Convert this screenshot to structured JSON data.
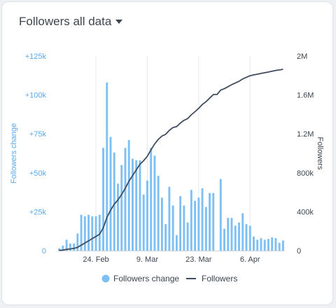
{
  "header": {
    "title": "Followers all data"
  },
  "colors": {
    "bars": "#7ec0f4",
    "line": "#3f4c5f",
    "left_axis": "#5ba8ea",
    "grid": "#e6e9ed"
  },
  "icons": {
    "dropdown": "caret-down-icon"
  },
  "chart_data": {
    "type": "bar+line",
    "x_ticks": [
      {
        "label": "24. Feb",
        "day": 10
      },
      {
        "label": "9. Mar",
        "day": 24
      },
      {
        "label": "23. Mar",
        "day": 38
      },
      {
        "label": "6. Apr",
        "day": 52
      }
    ],
    "y_left": {
      "label": "Followers change",
      "range": [
        0,
        125000
      ],
      "ticks": [
        {
          "value": 0,
          "label": "0"
        },
        {
          "value": 25000,
          "label": "+25k"
        },
        {
          "value": 50000,
          "label": "+50k"
        },
        {
          "value": 75000,
          "label": "+75k"
        },
        {
          "value": 100000,
          "label": "+100k"
        },
        {
          "value": 125000,
          "label": "+125k"
        }
      ]
    },
    "y_right": {
      "label": "Followers",
      "range": [
        0,
        2000000
      ],
      "ticks": [
        {
          "value": 0,
          "label": "0"
        },
        {
          "value": 400000,
          "label": "400k"
        },
        {
          "value": 800000,
          "label": "800k"
        },
        {
          "value": 1200000,
          "label": "1.2M"
        },
        {
          "value": 1600000,
          "label": "1.6M"
        },
        {
          "value": 2000000,
          "label": "2M"
        }
      ]
    },
    "series": [
      {
        "name": "Followers change",
        "kind": "bar",
        "values": [
          1500,
          3200,
          7000,
          4500,
          4500,
          11000,
          23000,
          22000,
          23000,
          22000,
          22000,
          23000,
          66000,
          108000,
          73000,
          63000,
          43000,
          55000,
          66000,
          71000,
          59000,
          58000,
          58000,
          36000,
          45000,
          66000,
          61000,
          48000,
          34000,
          17000,
          41000,
          29000,
          10000,
          35000,
          29000,
          18000,
          39000,
          32000,
          34000,
          40000,
          28000,
          37000,
          37000,
          0,
          46000,
          14000,
          21000,
          21000,
          16000,
          18000,
          24000,
          17000,
          16000,
          9000,
          7000,
          8000,
          7000,
          7500,
          8500,
          8000,
          5000,
          6500
        ]
      },
      {
        "name": "Followers",
        "kind": "line",
        "values": [
          2000,
          5000,
          12000,
          17000,
          22000,
          33000,
          56000,
          78000,
          101000,
          123000,
          145000,
          168000,
          234000,
          342000,
          415000,
          478000,
          521000,
          576000,
          642000,
          713000,
          772000,
          830000,
          888000,
          924000,
          969000,
          1035000,
          1096000,
          1144000,
          1178000,
          1195000,
          1236000,
          1265000,
          1275000,
          1310000,
          1339000,
          1357000,
          1396000,
          1428000,
          1462000,
          1502000,
          1530000,
          1567000,
          1604000,
          1604000,
          1650000,
          1664000,
          1685000,
          1706000,
          1722000,
          1740000,
          1764000,
          1781000,
          1797000,
          1806000,
          1813000,
          1821000,
          1828000,
          1835000,
          1844000,
          1852000,
          1857000,
          1863000
        ]
      }
    ],
    "legend": {
      "position": "bottom",
      "items": [
        {
          "label": "Followers change",
          "marker": "circle"
        },
        {
          "label": "Followers",
          "marker": "line"
        }
      ]
    },
    "grid": "vertical"
  }
}
